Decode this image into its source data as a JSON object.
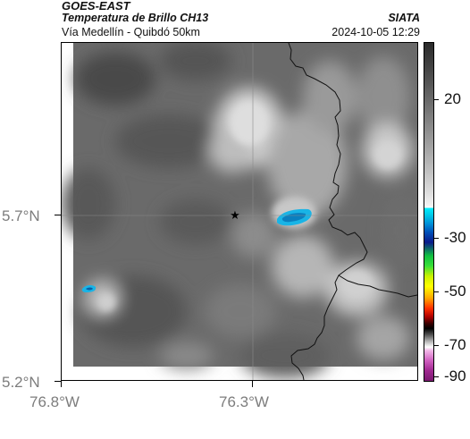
{
  "header": {
    "satellite": "GOES-EAST",
    "product": "Temperatura de Brillo CH13",
    "organization": "SIATA",
    "region": "Vía Medellín - Quibdó 50km",
    "datetime": "2024-10-05 12:29"
  },
  "map": {
    "lat_labels": [
      "5.7°N",
      "5.2°N"
    ],
    "lon_labels": [
      "76.8°W",
      "76.3°W"
    ],
    "marker": "star-icon",
    "colors": {
      "cold_cloud": "#19b4e6",
      "background_gray": "#6b6b6b",
      "border_line": "#000000"
    }
  },
  "colorbar": {
    "labels": [
      "20",
      "-30",
      "-50",
      "-70",
      "-90"
    ]
  }
}
